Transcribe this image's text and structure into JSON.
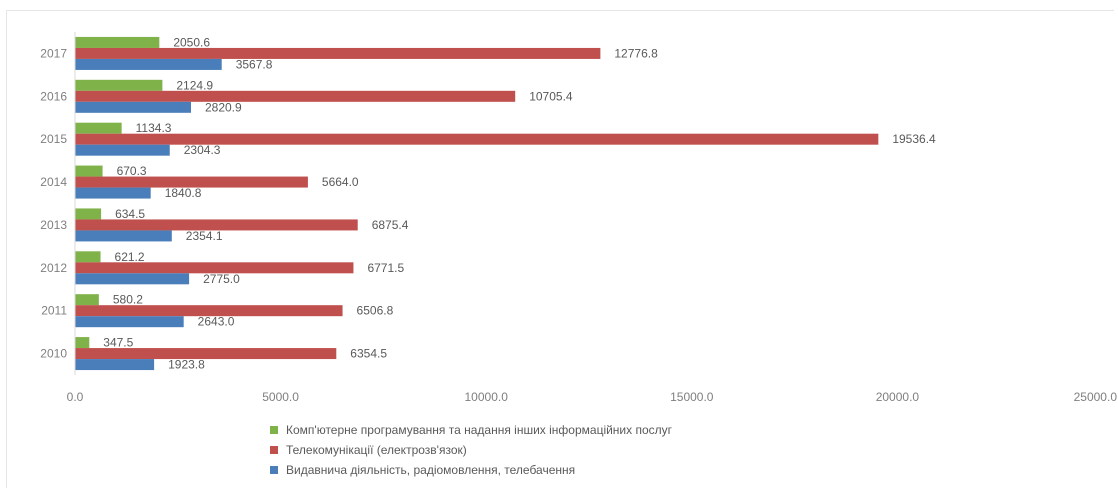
{
  "chart_data": {
    "type": "bar",
    "orientation": "horizontal",
    "categories": [
      "2017",
      "2016",
      "2015",
      "2014",
      "2013",
      "2012",
      "2011",
      "2010"
    ],
    "series": [
      {
        "name": "Комп'ютерне програмування та надання інших інформаційних послуг",
        "color": "#7fb34a",
        "values": [
          2050.6,
          2124.9,
          1134.3,
          670.3,
          634.5,
          621.2,
          580.2,
          347.5
        ],
        "labels": [
          "2050.6",
          "2124.9",
          "1134.3",
          "670.3",
          "634.5",
          "621.2",
          "580.2",
          "347.5"
        ]
      },
      {
        "name": "Телекомунікації (електрозв'язок)",
        "color": "#c0504d",
        "values": [
          12776.8,
          10705.4,
          19536.4,
          5664.0,
          6875.4,
          6771.5,
          6506.8,
          6354.5
        ],
        "labels": [
          "12776.8",
          "10705.4",
          "19536.4",
          "5664.0",
          "6875.4",
          "6771.5",
          "6506.8",
          "6354.5"
        ]
      },
      {
        "name": "Видавнича діяльність, радіомовлення, телебачення",
        "color": "#4a7ebb",
        "values": [
          3567.8,
          2820.9,
          2304.3,
          1840.8,
          2354.1,
          2775.0,
          2643.0,
          1923.8
        ],
        "labels": [
          "3567.8",
          "2820.9",
          "2304.3",
          "1840.8",
          "2354.1",
          "2775.0",
          "2643.0",
          "1923.8"
        ]
      }
    ],
    "xlim": [
      0,
      25000
    ],
    "x_ticks": [
      0,
      5000,
      10000,
      15000,
      20000,
      25000
    ],
    "x_tick_labels": [
      "0.0",
      "5000.0",
      "10000.0",
      "15000.0",
      "20000.0",
      "25000.0"
    ],
    "title": "",
    "xlabel": "",
    "ylabel": "",
    "grid": false,
    "legend_position": "bottom"
  }
}
